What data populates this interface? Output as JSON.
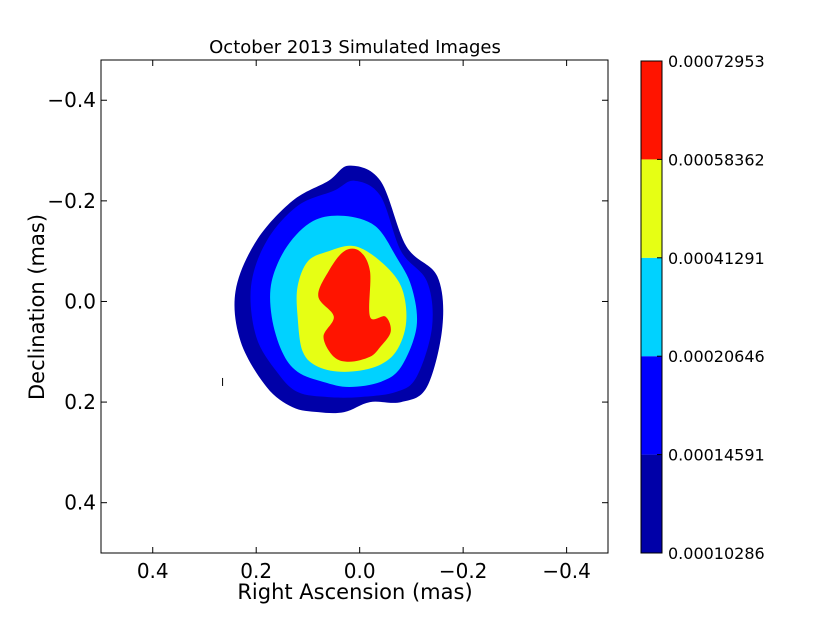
{
  "chart_data": {
    "type": "contour",
    "title": "October 2013 Simulated Images",
    "xlabel": "Right Ascension (mas)",
    "ylabel": "Declination (mas)",
    "xlim": [
      0.5,
      -0.48
    ],
    "ylim": [
      0.5,
      -0.48
    ],
    "xticks": [
      0.4,
      0.2,
      0.0,
      -0.2,
      -0.4
    ],
    "xtick_labels": [
      "0.4",
      "0.2",
      "0.0",
      "−0.2",
      "−0.4"
    ],
    "yticks": [
      -0.4,
      -0.2,
      0.0,
      0.2,
      0.4
    ],
    "ytick_labels": [
      "−0.4",
      "−0.2",
      "0.0",
      "0.2",
      "0.4"
    ],
    "grid": false,
    "levels": [
      {
        "min_label": "0.00010286",
        "max_label": "0.00014591",
        "color": "#0000a8",
        "outline": [
          [
            0.02,
            -0.27
          ],
          [
            -0.04,
            -0.24
          ],
          [
            -0.09,
            -0.11
          ],
          [
            -0.15,
            -0.05
          ],
          [
            -0.16,
            0.05
          ],
          [
            -0.13,
            0.17
          ],
          [
            -0.08,
            0.2
          ],
          [
            -0.02,
            0.2
          ],
          [
            0.03,
            0.22
          ],
          [
            0.08,
            0.22
          ],
          [
            0.13,
            0.21
          ],
          [
            0.18,
            0.17
          ],
          [
            0.23,
            0.08
          ],
          [
            0.24,
            -0.02
          ],
          [
            0.2,
            -0.12
          ],
          [
            0.13,
            -0.2
          ],
          [
            0.06,
            -0.24
          ]
        ]
      },
      {
        "min_label": "0.00014591",
        "max_label": "0.00020646",
        "color": "#0000ff",
        "outline": [
          [
            0.01,
            -0.24
          ],
          [
            -0.04,
            -0.21
          ],
          [
            -0.08,
            -0.1
          ],
          [
            -0.13,
            -0.04
          ],
          [
            -0.14,
            0.05
          ],
          [
            -0.11,
            0.15
          ],
          [
            -0.07,
            0.18
          ],
          [
            0.0,
            0.19
          ],
          [
            0.06,
            0.19
          ],
          [
            0.12,
            0.18
          ],
          [
            0.16,
            0.14
          ],
          [
            0.2,
            0.07
          ],
          [
            0.21,
            -0.03
          ],
          [
            0.18,
            -0.12
          ],
          [
            0.12,
            -0.19
          ],
          [
            0.05,
            -0.22
          ]
        ]
      },
      {
        "min_label": "0.00020646",
        "max_label": "0.00041291",
        "color": "#00d2ff",
        "outline": [
          [
            0.03,
            -0.17
          ],
          [
            -0.03,
            -0.15
          ],
          [
            -0.07,
            -0.09
          ],
          [
            -0.1,
            -0.03
          ],
          [
            -0.11,
            0.05
          ],
          [
            -0.08,
            0.13
          ],
          [
            -0.04,
            0.16
          ],
          [
            0.02,
            0.17
          ],
          [
            0.07,
            0.16
          ],
          [
            0.12,
            0.14
          ],
          [
            0.15,
            0.1
          ],
          [
            0.17,
            0.03
          ],
          [
            0.17,
            -0.04
          ],
          [
            0.14,
            -0.11
          ],
          [
            0.09,
            -0.16
          ]
        ]
      },
      {
        "min_label": "0.00041291",
        "max_label": "0.00058362",
        "color": "#e6ff14",
        "outline": [
          [
            0.01,
            -0.11
          ],
          [
            -0.04,
            -0.08
          ],
          [
            -0.08,
            -0.03
          ],
          [
            -0.09,
            0.04
          ],
          [
            -0.07,
            0.1
          ],
          [
            -0.03,
            0.13
          ],
          [
            0.03,
            0.14
          ],
          [
            0.08,
            0.13
          ],
          [
            0.11,
            0.1
          ],
          [
            0.12,
            0.03
          ],
          [
            0.12,
            -0.03
          ],
          [
            0.1,
            -0.08
          ],
          [
            0.06,
            -0.1
          ]
        ]
      },
      {
        "min_label": "0.00058362",
        "max_label": "0.00072953",
        "color": "#ff1400",
        "outline": [
          [
            0.03,
            -0.1
          ],
          [
            0.0,
            -0.1
          ],
          [
            -0.02,
            -0.06
          ],
          [
            -0.02,
            0.03
          ],
          [
            -0.05,
            0.03
          ],
          [
            -0.06,
            0.06
          ],
          [
            -0.04,
            0.09
          ],
          [
            -0.02,
            0.11
          ],
          [
            0.02,
            0.12
          ],
          [
            0.05,
            0.11
          ],
          [
            0.07,
            0.07
          ],
          [
            0.05,
            0.03
          ],
          [
            0.08,
            -0.01
          ],
          [
            0.06,
            -0.06
          ]
        ]
      }
    ],
    "speck": [
      0.265,
      0.16
    ],
    "colorbar": {
      "ticks": [
        "0.00010286",
        "0.00014591",
        "0.00020646",
        "0.00041291",
        "0.00058362",
        "0.00072953"
      ],
      "colors": [
        "#0000a8",
        "#0000ff",
        "#00d2ff",
        "#e6ff14",
        "#ff1400"
      ]
    }
  }
}
